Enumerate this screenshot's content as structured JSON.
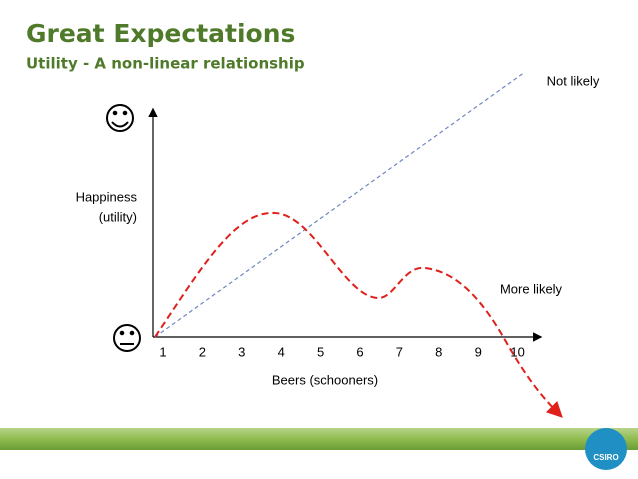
{
  "header": {
    "title": "Great Expectations",
    "subtitle": "Utility - A non-linear relationship"
  },
  "figure": {
    "y_label": [
      "Happiness",
      "(utility)"
    ],
    "x_label": "Beers (schooners)",
    "x_ticks": [
      1,
      2,
      3,
      4,
      5,
      6,
      7,
      8,
      9,
      10
    ],
    "annotations": {
      "straight_line": "Not likely",
      "curve": "More likely"
    }
  },
  "footer": {
    "logo": "CSIRO"
  }
}
